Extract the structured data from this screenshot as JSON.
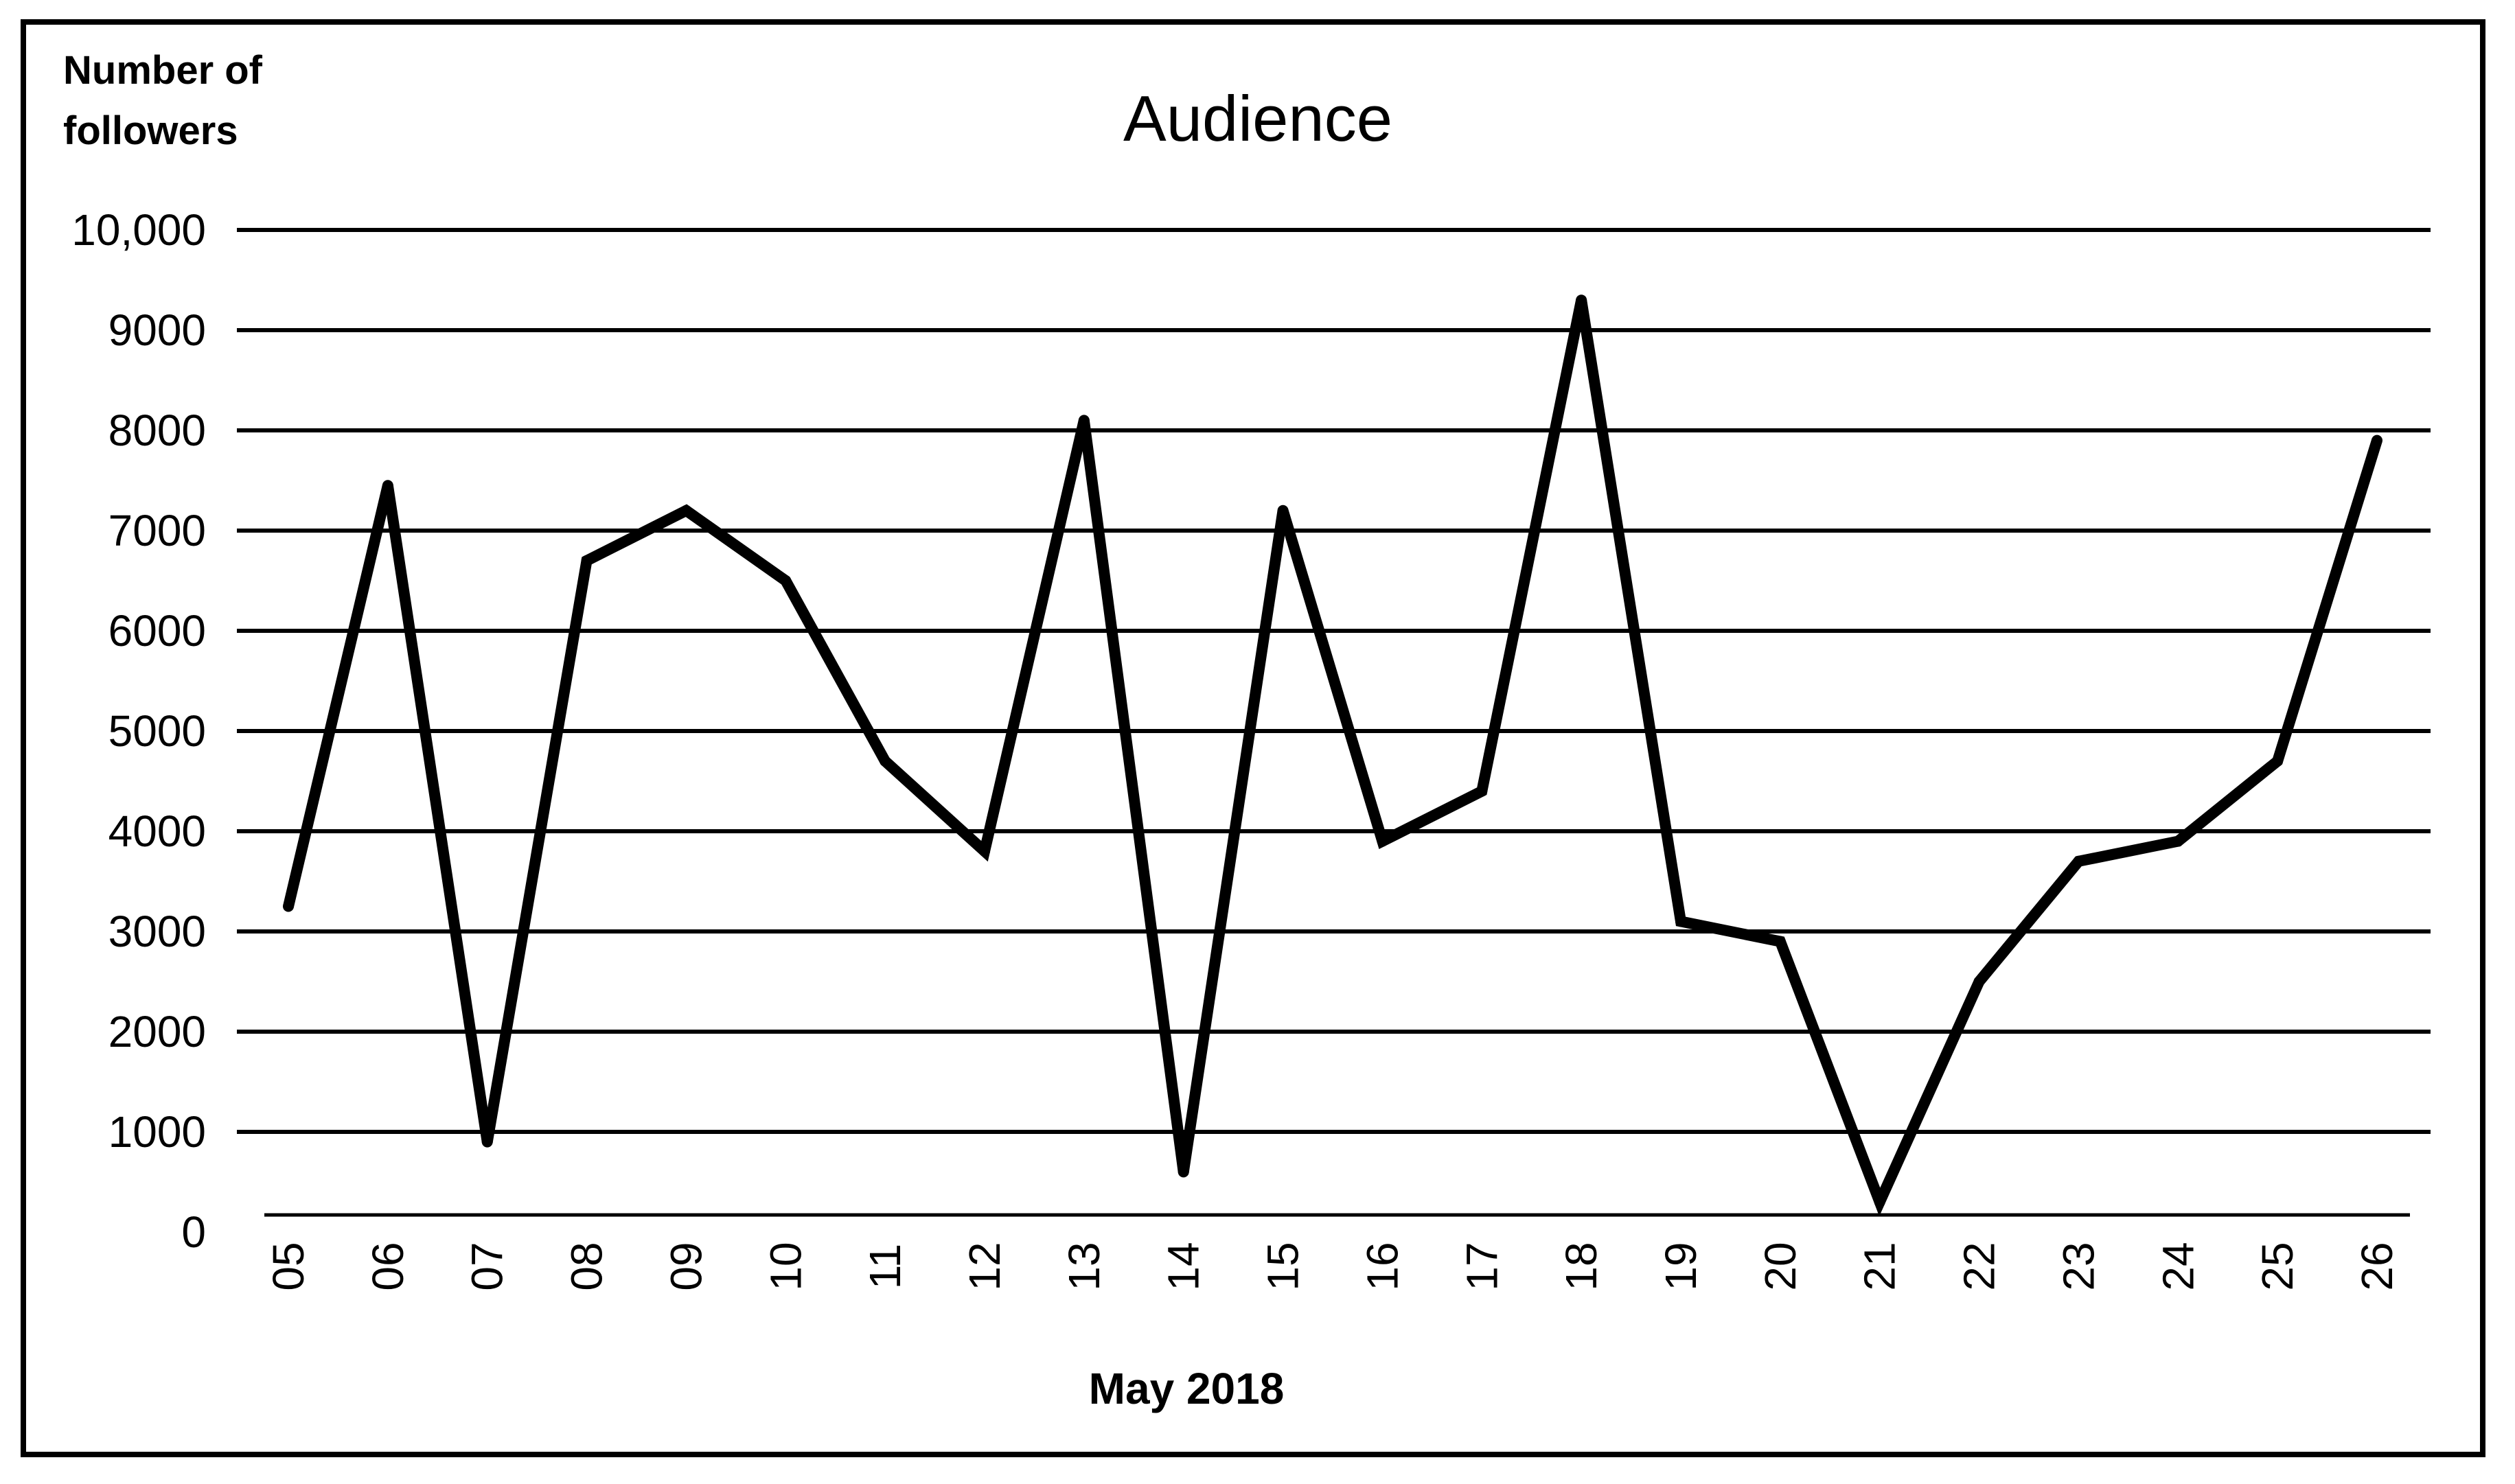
{
  "chart_data": {
    "type": "line",
    "title": "Audience",
    "ylabel_lines": [
      "Number of",
      "followers"
    ],
    "xlabel": "May 2018",
    "ylim": [
      0,
      10000
    ],
    "y_ticks": [
      0,
      1000,
      2000,
      3000,
      4000,
      5000,
      6000,
      7000,
      8000,
      9000,
      10000
    ],
    "y_tick_labels": [
      "0",
      "1000",
      "2000",
      "3000",
      "4000",
      "5000",
      "6000",
      "7000",
      "8000",
      "9000",
      "10,000"
    ],
    "grid": true,
    "legend": "none",
    "categories": [
      "05",
      "06",
      "07",
      "08",
      "09",
      "10",
      "11",
      "12",
      "13",
      "14",
      "15",
      "16",
      "17",
      "18",
      "19",
      "20",
      "21",
      "22",
      "23",
      "24",
      "25",
      "26"
    ],
    "values": [
      3250,
      7450,
      900,
      6700,
      7200,
      6500,
      4700,
      3800,
      8100,
      600,
      7200,
      3900,
      4400,
      9300,
      3100,
      2900,
      300,
      2500,
      3700,
      3900,
      4700,
      7900
    ],
    "line_color": "#000000"
  }
}
